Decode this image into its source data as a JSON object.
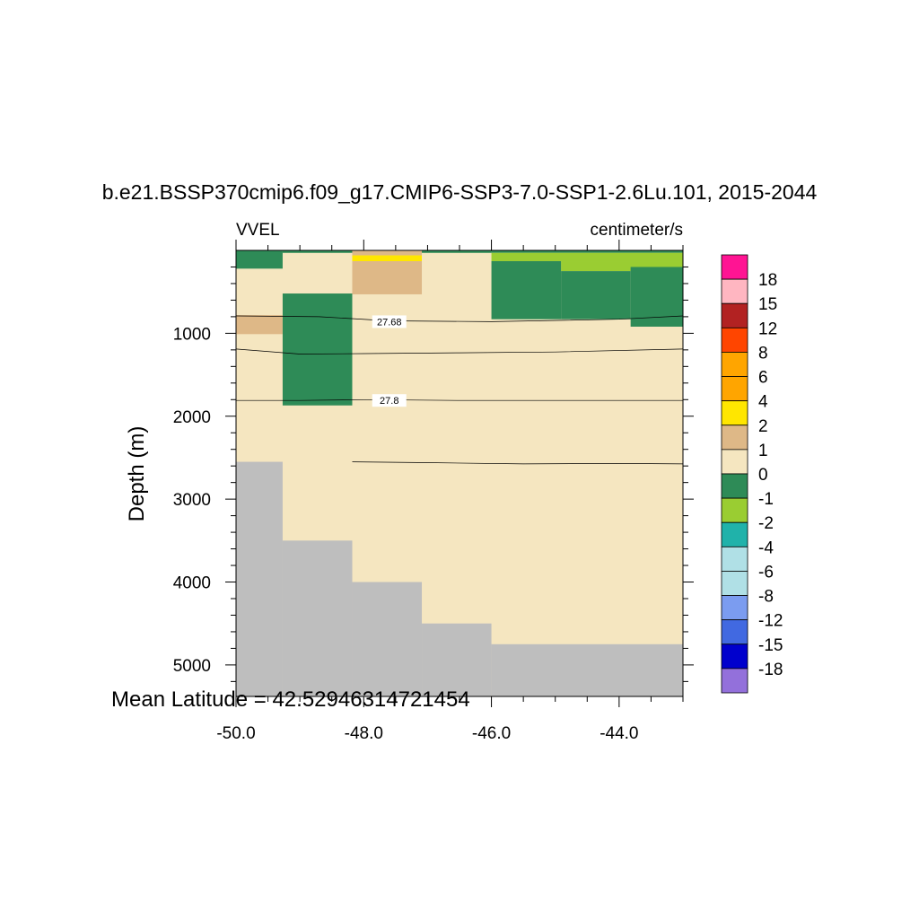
{
  "chart_data": {
    "type": "heatmap",
    "title": "b.e21.BSSP370cmip6.f09_g17.CMIP6-SSP3-7.0-SSP1-2.6Lu.101, 2015-2044",
    "left_label": "VVEL",
    "right_label": "centimeter/s",
    "ylabel": "Depth (m)",
    "annotation": "Mean Latitude = 42.52946314721454",
    "xlim": [
      -50.0,
      -43.0
    ],
    "ylim": [
      5380,
      0
    ],
    "x_ticks": [
      "-50.0",
      "-48.0",
      "-46.0",
      "-44.0"
    ],
    "x_tick_values": [
      -50.0,
      -48.0,
      -46.0,
      -44.0
    ],
    "y_ticks": [
      "1000",
      "2000",
      "3000",
      "4000",
      "5000"
    ],
    "y_tick_values": [
      1000,
      2000,
      3000,
      4000,
      5000
    ],
    "colorbar": {
      "labels": [
        "18",
        "15",
        "12",
        "8",
        "6",
        "4",
        "2",
        "1",
        "0",
        "-1",
        "-2",
        "-4",
        "-6",
        "-8",
        "-12",
        "-15",
        "-18"
      ],
      "colors": [
        "#ff1493",
        "#ffb6c1",
        "#b22222",
        "#ff4500",
        "#ffa500",
        "#ffa500",
        "#ffe600",
        "#deb887",
        "#f5e6c0",
        "#2e8b57",
        "#9acd32",
        "#20b2aa",
        "#b0e0e6",
        "#b0e0e6",
        "#7b9cf0",
        "#4169e1",
        "#0000cd",
        "#9370db"
      ]
    },
    "background_color": "#f5e6c0",
    "land_color": "#bebebe",
    "cells": [
      {
        "x0": -50.0,
        "x1": -49.27,
        "d0": 0,
        "d1": 220,
        "color": "#2e8b57"
      },
      {
        "x0": -50.0,
        "x1": -49.27,
        "d0": 780,
        "d1": 1010,
        "color": "#deb887"
      },
      {
        "x0": -49.27,
        "x1": -48.18,
        "d0": 520,
        "d1": 1870,
        "color": "#2e8b57"
      },
      {
        "x0": -49.27,
        "x1": -48.18,
        "d0": 0,
        "d1": 30,
        "color": "#2e8b57"
      },
      {
        "x0": -48.18,
        "x1": -47.09,
        "d0": 0,
        "d1": 60,
        "color": "#deb887"
      },
      {
        "x0": -48.18,
        "x1": -47.09,
        "d0": 60,
        "d1": 130,
        "color": "#ffe600"
      },
      {
        "x0": -48.18,
        "x1": -47.09,
        "d0": 130,
        "d1": 530,
        "color": "#deb887"
      },
      {
        "x0": -47.09,
        "x1": -46.0,
        "d0": 0,
        "d1": 30,
        "color": "#2e8b57"
      },
      {
        "x0": -46.0,
        "x1": -43.0,
        "d0": 0,
        "d1": 30,
        "color": "#2e8b57"
      },
      {
        "x0": -46.0,
        "x1": -43.0,
        "d0": 30,
        "d1": 130,
        "color": "#9acd32"
      },
      {
        "x0": -44.91,
        "x1": -43.0,
        "d0": 130,
        "d1": 250,
        "color": "#9acd32"
      },
      {
        "x0": -46.0,
        "x1": -44.91,
        "d0": 130,
        "d1": 830,
        "color": "#2e8b57"
      },
      {
        "x0": -44.91,
        "x1": -43.82,
        "d0": 250,
        "d1": 830,
        "color": "#2e8b57"
      },
      {
        "x0": -43.82,
        "x1": -43.0,
        "d0": 200,
        "d1": 920,
        "color": "#2e8b57"
      }
    ],
    "land": [
      {
        "x0": -50.0,
        "x1": -49.27,
        "d0": 2550
      },
      {
        "x0": -49.27,
        "x1": -48.18,
        "d0": 3500
      },
      {
        "x0": -48.18,
        "x1": -47.09,
        "d0": 4000
      },
      {
        "x0": -47.09,
        "x1": -46.0,
        "d0": 4500
      },
      {
        "x0": -46.0,
        "x1": -43.0,
        "d0": 4750
      }
    ],
    "contours": [
      {
        "label": "27.68",
        "label_x": -47.6,
        "label_d": 860,
        "points": [
          [
            -50.0,
            790
          ],
          [
            -48.7,
            800
          ],
          [
            -47.6,
            850
          ],
          [
            -46.0,
            860
          ],
          [
            -44.0,
            830
          ],
          [
            -43.0,
            790
          ]
        ]
      },
      {
        "label": "",
        "points": [
          [
            -50.0,
            1190
          ],
          [
            -49.0,
            1250
          ],
          [
            -48.0,
            1245
          ],
          [
            -46.5,
            1235
          ],
          [
            -45.0,
            1225
          ],
          [
            -43.0,
            1190
          ]
        ]
      },
      {
        "label": "27.8",
        "label_x": -47.6,
        "label_d": 1810,
        "points": [
          [
            -50.0,
            1810
          ],
          [
            -49.0,
            1810
          ],
          [
            -48.0,
            1800
          ],
          [
            -46.5,
            1810
          ],
          [
            -45.0,
            1810
          ],
          [
            -43.0,
            1810
          ]
        ]
      },
      {
        "label": "",
        "points": [
          [
            -48.18,
            2550
          ],
          [
            -47.0,
            2560
          ],
          [
            -45.5,
            2575
          ],
          [
            -44.0,
            2570
          ],
          [
            -43.0,
            2575
          ]
        ]
      }
    ]
  }
}
